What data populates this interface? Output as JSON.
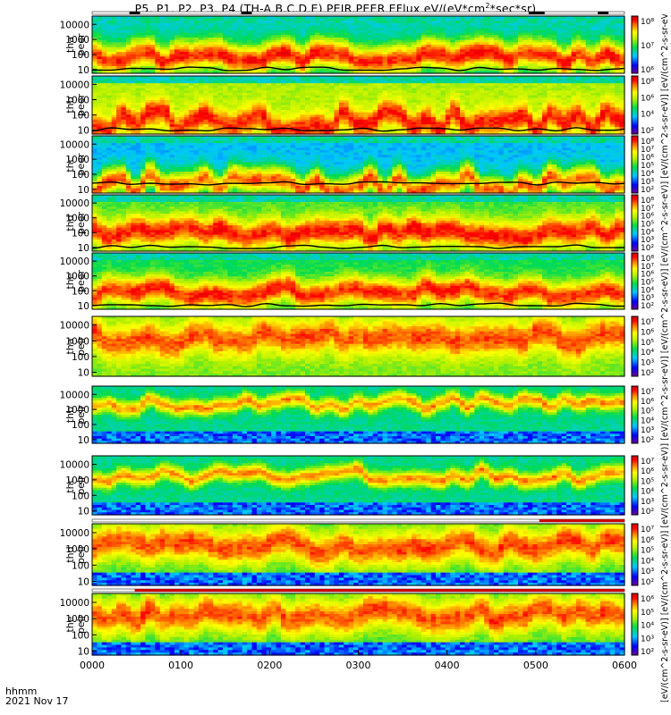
{
  "title": "P5, P1, P2, P3, P4 (TH-A,B,C,D,E) PEIR,PEER EFlux eV/(eV*cm2*sec*sr)",
  "colorbar_label": "[eV/(cm^2-s-sr-eV)] [eV/(cm^2-s-sr-eV)] [eV/(cm^2-s-sr-eV)] [eV/(cm^2-s-sr-eV)] [eV/(cm^2-s-sr-eV)] [eV/(cm^2-s-sr-eV)] [eV/(cm^2-s-sr-eV)] [eV/(cm^2-s-sr-eV)] [eV/(cm^2-s-sr-eV)] [eV/(cm^2-s-sr-eV)]",
  "x_caption": [
    "hhmm",
    "2021 Nov 17"
  ],
  "colors": {
    "frame": "#000000",
    "background": "#ffffff",
    "flag_bar": "#cc0000"
  },
  "chart_data": {
    "type": "heatmap",
    "x_ticks": [
      "0000",
      "0100",
      "0200",
      "0300",
      "0400",
      "0500",
      "0600"
    ],
    "xlim": [
      "0000",
      "0600"
    ],
    "y_scale": "log",
    "colormap": "rainbow (purple-blue-cyan-green-yellow-red)",
    "panels": [
      {
        "label": [
          "tha",
          "peer"
        ],
        "yticks": [
          "10",
          "100",
          "1000",
          "10000"
        ],
        "cbar": [
          "10^6",
          "10^7",
          "10^8"
        ],
        "core_ev": 60,
        "spread": 1.0,
        "core_val": 0.96,
        "bg": 0.36,
        "flag_marks": [
          [
            0.07,
            0.09
          ],
          [
            0.28,
            0.3
          ],
          [
            0.82,
            0.85
          ],
          [
            0.95,
            0.97
          ]
        ]
      },
      {
        "label": [
          "thb",
          "peer"
        ],
        "yticks": [
          "10",
          "100",
          "1000",
          "10000"
        ],
        "cbar": [
          "10^2",
          "10^4",
          "10^6",
          "10^8"
        ],
        "core_ev": 40,
        "spread": 0.9,
        "core_val": 0.94,
        "bg": 0.6
      },
      {
        "label": [
          "thc",
          "peer"
        ],
        "yticks": [
          "10",
          "100",
          "1000",
          "10000"
        ],
        "cbar": [
          "10^2",
          "10^3",
          "10^4",
          "10^5",
          "10^6",
          "10^7",
          "10^8"
        ],
        "core_ev": 20,
        "spread": 0.9,
        "core_val": 0.9,
        "bg": 0.3
      },
      {
        "label": [
          "thd",
          "peer"
        ],
        "yticks": [
          "10",
          "100",
          "1000",
          "10000"
        ],
        "cbar": [
          "10^2",
          "10^3",
          "10^4",
          "10^5",
          "10^6",
          "10^7",
          "10^8"
        ],
        "core_ev": 100,
        "spread": 1.0,
        "core_val": 0.95,
        "bg": 0.5
      },
      {
        "label": [
          "the",
          "peer"
        ],
        "yticks": [
          "10",
          "100",
          "1000",
          "10000"
        ],
        "cbar": [
          "10^2",
          "10^3",
          "10^4",
          "10^5",
          "10^6",
          "10^7",
          "10^8"
        ],
        "core_ev": 90,
        "spread": 0.95,
        "core_val": 0.94,
        "bg": 0.45
      },
      {
        "label": [
          "tha",
          "peir"
        ],
        "yticks": [
          "10",
          "100",
          "1000",
          "10000"
        ],
        "cbar": [
          "10^2",
          "10^3",
          "10^4",
          "10^5",
          "10^6",
          "10^7"
        ],
        "core_ev": 1500,
        "spread": 1.1,
        "core_val": 0.9,
        "bg": 0.55
      },
      {
        "label": [
          "thb",
          "peir"
        ],
        "yticks": [
          "10",
          "100",
          "1000",
          "10000"
        ],
        "cbar": [
          "10^2",
          "10^3",
          "10^4",
          "10^5",
          "10^6",
          "10^7"
        ],
        "core_ev": 2500,
        "spread": 0.5,
        "core_val": 0.85,
        "bg": 0.4
      },
      {
        "label": [
          "thc",
          "peir"
        ],
        "yticks": [
          "10",
          "100",
          "1000",
          "10000"
        ],
        "cbar": [
          "10^2",
          "10^3",
          "10^4",
          "10^5",
          "10^6",
          "10^7"
        ],
        "core_ev": 2000,
        "spread": 0.5,
        "core_val": 0.85,
        "bg": 0.4
      },
      {
        "label": [
          "thd",
          "peir"
        ],
        "yticks": [
          "10",
          "100",
          "1000",
          "10000"
        ],
        "cbar": [
          "10^2",
          "10^3",
          "10^4",
          "10^5",
          "10^6",
          "10^7"
        ],
        "core_ev": 1500,
        "spread": 1.1,
        "core_val": 0.9,
        "bg": 0.5,
        "flag_marks": [
          [
            0.84,
            1.0
          ]
        ]
      },
      {
        "label": [
          "the",
          "peir"
        ],
        "yticks": [
          "10",
          "100",
          "1000",
          "10000"
        ],
        "cbar": [
          "10^2",
          "10^3",
          "10^4",
          "10^5",
          "10^6"
        ],
        "core_ev": 1500,
        "spread": 1.1,
        "core_val": 0.9,
        "bg": 0.5,
        "flag_marks": [
          [
            0.08,
            1.0
          ]
        ]
      }
    ]
  }
}
